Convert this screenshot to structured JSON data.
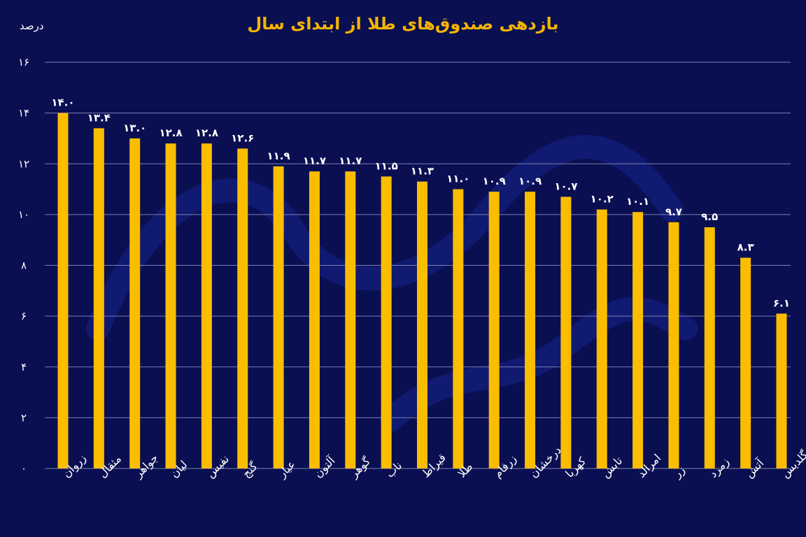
{
  "title": "بازدهی صندوق‌های طلا از ابتدای سال",
  "unit_label": "درصد",
  "colors": {
    "background": "#0a0f52",
    "bar": "#fbbd00",
    "title": "#f5b400",
    "text": "#ffffff",
    "grid": "#7a7fb0"
  },
  "chart_data": {
    "type": "bar",
    "title": "بازدهی صندوق‌های طلا از ابتدای سال",
    "ylabel": "درصد",
    "xlabel": "",
    "ylim": [
      0,
      16
    ],
    "yticks": [
      0,
      2,
      4,
      6,
      8,
      10,
      12,
      14,
      16
    ],
    "ytick_labels": [
      "۰",
      "۲",
      "۴",
      "۶",
      "۸",
      "۱۰",
      "۱۲",
      "۱۴",
      "۱۶"
    ],
    "grid": true,
    "categories": [
      "زروان",
      "مثقال",
      "جواهر",
      "لیان",
      "نفیس",
      "گنج",
      "عیار",
      "آلتون",
      "گوهر",
      "ناب",
      "قیراط",
      "طلا",
      "زرفام",
      "درخشان",
      "کهربا",
      "تابش",
      "امرالد",
      "زر",
      "زمرد",
      "آتش",
      "گلدیس"
    ],
    "values": [
      14.0,
      13.4,
      13.0,
      12.8,
      12.8,
      12.6,
      11.9,
      11.7,
      11.7,
      11.5,
      11.3,
      11.0,
      10.9,
      10.9,
      10.7,
      10.2,
      10.1,
      9.7,
      9.5,
      8.3,
      6.1
    ],
    "value_labels": [
      "۱۴.۰",
      "۱۳.۴",
      "۱۳.۰",
      "۱۲.۸",
      "۱۲.۸",
      "۱۲.۶",
      "۱۱.۹",
      "۱۱.۷",
      "۱۱.۷",
      "۱۱.۵",
      "۱۱.۳",
      "۱۱.۰",
      "۱۰.۹",
      "۱۰.۹",
      "۱۰.۷",
      "۱۰.۲",
      "۱۰.۱",
      "۹.۷",
      "۹.۵",
      "۸.۳",
      "۶.۱"
    ]
  }
}
